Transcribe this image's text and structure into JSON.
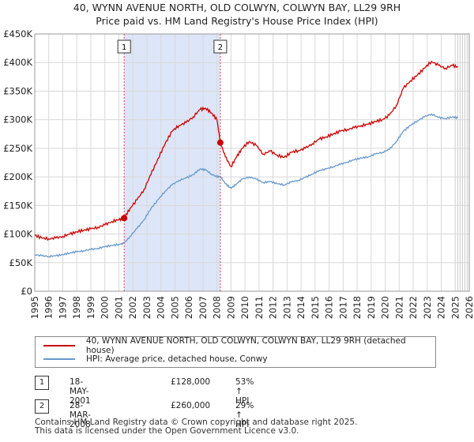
{
  "title_line1": "40, WYNN AVENUE NORTH, OLD COLWYN, COLWYN BAY, LL29 9RH",
  "title_line2": "Price paid vs. HM Land Registry's House Price Index (HPI)",
  "colors": {
    "property": "#cc0000",
    "hpi": "#6699cc",
    "shade": "#dde6f8",
    "grid": "#d8d8d8",
    "marker_line": "#dd4444"
  },
  "chart_data": {
    "type": "line",
    "xlim": [
      1995,
      2026
    ],
    "ylim": [
      0,
      450000
    ],
    "y_ticks": [
      0,
      50000,
      100000,
      150000,
      200000,
      250000,
      300000,
      350000,
      400000,
      450000
    ],
    "y_tick_labels": [
      "£0",
      "£50K",
      "£100K",
      "£150K",
      "£200K",
      "£250K",
      "£300K",
      "£350K",
      "£400K",
      "£450K"
    ],
    "x_ticks": [
      1995,
      1996,
      1997,
      1998,
      1999,
      2000,
      2001,
      2002,
      2003,
      2004,
      2005,
      2006,
      2007,
      2008,
      2009,
      2010,
      2011,
      2012,
      2013,
      2014,
      2015,
      2016,
      2017,
      2018,
      2019,
      2020,
      2021,
      2022,
      2023,
      2024,
      2025,
      2026
    ],
    "shaded_period": [
      2001.38,
      2008.24
    ],
    "forecast_start": 2025.0,
    "series": [
      {
        "name": "40, WYNN AVENUE NORTH, OLD COLWYN, COLWYN BAY, LL29 9RH (detached house)",
        "x": [
          1995,
          1995.5,
          1996,
          1996.5,
          1997,
          1997.5,
          1998,
          1998.5,
          1999,
          1999.5,
          2000,
          2000.5,
          2001,
          2001.38,
          2001.8,
          2002.3,
          2002.8,
          2003.3,
          2003.8,
          2004.3,
          2004.8,
          2005.3,
          2005.8,
          2006.3,
          2006.8,
          2007.2,
          2007.6,
          2008.0,
          2008.24,
          2008.6,
          2009.0,
          2009.4,
          2009.8,
          2010.3,
          2010.8,
          2011.3,
          2011.8,
          2012.3,
          2012.8,
          2013.3,
          2013.8,
          2014.3,
          2014.8,
          2015.3,
          2015.8,
          2016.3,
          2016.8,
          2017.3,
          2017.8,
          2018.3,
          2018.8,
          2019.3,
          2019.8,
          2020.3,
          2020.8,
          2021.3,
          2021.8,
          2022.3,
          2022.8,
          2023.3,
          2023.8,
          2024.3,
          2024.8,
          2025.2
        ],
        "y": [
          98000,
          93000,
          92000,
          93000,
          96000,
          100000,
          104000,
          107000,
          109000,
          112000,
          116000,
          122000,
          125000,
          128000,
          145000,
          160000,
          178000,
          205000,
          232000,
          258000,
          280000,
          290000,
          295000,
          305000,
          318000,
          320000,
          312000,
          300000,
          260000,
          235000,
          218000,
          235000,
          250000,
          262000,
          255000,
          240000,
          245000,
          238000,
          234000,
          243000,
          246000,
          250000,
          258000,
          266000,
          270000,
          275000,
          280000,
          283000,
          286000,
          290000,
          292000,
          297000,
          300000,
          308000,
          325000,
          355000,
          368000,
          378000,
          390000,
          402000,
          395000,
          390000,
          395000,
          392000
        ]
      },
      {
        "name": "HPI: Average price, detached house, Conwy",
        "x": [
          1995,
          1995.5,
          1996,
          1996.5,
          1997,
          1997.5,
          1998,
          1998.5,
          1999,
          1999.5,
          2000,
          2000.5,
          2001,
          2001.38,
          2001.8,
          2002.3,
          2002.8,
          2003.3,
          2003.8,
          2004.3,
          2004.8,
          2005.3,
          2005.8,
          2006.3,
          2006.8,
          2007.2,
          2007.6,
          2008.0,
          2008.24,
          2008.6,
          2009.0,
          2009.4,
          2009.8,
          2010.3,
          2010.8,
          2011.3,
          2011.8,
          2012.3,
          2012.8,
          2013.3,
          2013.8,
          2014.3,
          2014.8,
          2015.3,
          2015.8,
          2016.3,
          2016.8,
          2017.3,
          2017.8,
          2018.3,
          2018.8,
          2019.3,
          2019.8,
          2020.3,
          2020.8,
          2021.3,
          2021.8,
          2022.3,
          2022.8,
          2023.3,
          2023.8,
          2024.3,
          2024.8,
          2025.2
        ],
        "y": [
          64000,
          62000,
          61000,
          62000,
          64000,
          67000,
          69000,
          71000,
          73000,
          75000,
          78000,
          80000,
          82000,
          84000,
          96000,
          110000,
          125000,
          145000,
          160000,
          175000,
          186000,
          194000,
          198000,
          204000,
          214000,
          212000,
          205000,
          200000,
          201000,
          188000,
          180000,
          188000,
          196000,
          200000,
          196000,
          190000,
          192000,
          188000,
          186000,
          191000,
          194000,
          199000,
          205000,
          211000,
          214000,
          218000,
          222000,
          226000,
          230000,
          233000,
          235000,
          240000,
          243000,
          248000,
          262000,
          280000,
          290000,
          298000,
          305000,
          310000,
          304000,
          302000,
          305000,
          303000
        ]
      }
    ],
    "markers": [
      {
        "label": "1",
        "x": 2001.38,
        "y": 128000
      },
      {
        "label": "2",
        "x": 2008.24,
        "y": 260000
      }
    ]
  },
  "legend": {
    "property_label": "40, WYNN AVENUE NORTH, OLD COLWYN, COLWYN BAY, LL29 9RH (detached house)",
    "hpi_label": "HPI: Average price, detached house, Conwy"
  },
  "transactions": [
    {
      "num": "1",
      "date": "18-MAY-2001",
      "price": "£128,000",
      "hpi": "53% ↑ HPI"
    },
    {
      "num": "2",
      "date": "28-MAR-2008",
      "price": "£260,000",
      "hpi": "29% ↑ HPI"
    }
  ],
  "footer": {
    "line1": "Contains HM Land Registry data © Crown copyright and database right 2025.",
    "line2": "This data is licensed under the Open Government Licence v3.0."
  }
}
